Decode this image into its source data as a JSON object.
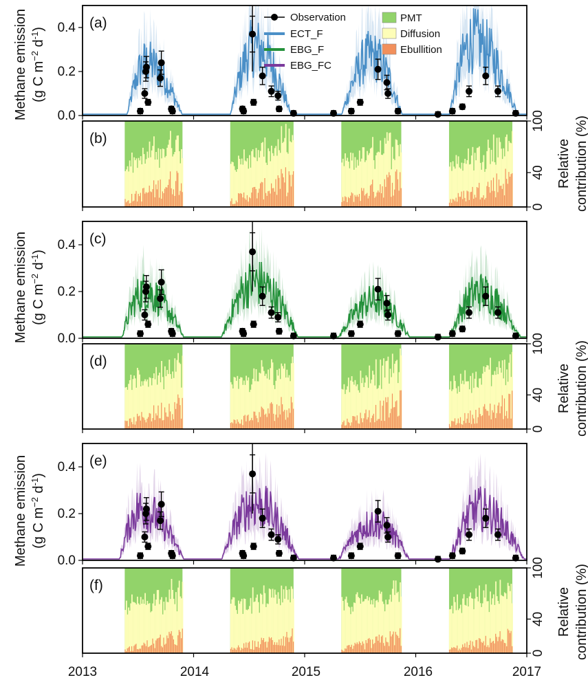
{
  "colors": {
    "ECT_F": "#4a8fc7",
    "EBG_F": "#24913b",
    "EBG_FC": "#7b3a9c",
    "PMT": "#92d36a",
    "Diffusion": "#fdfdb8",
    "Ebullition": "#f2905c",
    "observation": "#000000"
  },
  "legend": {
    "observation": "Observation",
    "ECT_F": "ECT_F",
    "EBG_F": "EBG_F",
    "EBG_FC": "EBG_FC",
    "PMT": "PMT",
    "Diffusion": "Diffusion",
    "Ebullition": "Ebullition"
  },
  "emission_ylabel": {
    "line1": "Methane emission",
    "line2_prefix": "(g C m",
    "line2_exp1": "−2",
    "line2_mid": " d",
    "line2_exp2": "-1",
    "line2_suffix": ")"
  },
  "contribution_ylabel": {
    "line1": "Relative",
    "line2": "contribution (%)"
  },
  "x_ticks": [
    "2013",
    "2014",
    "2015",
    "2016",
    "2017"
  ],
  "chart_data": [
    {
      "panel": "(a)",
      "type": "line",
      "x_range": [
        2013,
        2017
      ],
      "ylim": [
        0,
        0.5
      ],
      "y_ticks": [
        "0.0",
        "0.2",
        "0.4"
      ],
      "series": [
        {
          "name": "ECT_F",
          "seasons": [
            {
              "start": 2013.4,
              "peak": 2013.57,
              "end": 2013.9,
              "peak_value": 0.24
            },
            {
              "start": 2014.33,
              "peak": 2014.55,
              "end": 2014.88,
              "peak_value": 0.31
            },
            {
              "start": 2015.33,
              "peak": 2015.6,
              "end": 2015.88,
              "peak_value": 0.27
            },
            {
              "start": 2016.3,
              "peak": 2016.52,
              "end": 2016.92,
              "peak_value": 0.34
            }
          ]
        }
      ],
      "observations": [
        {
          "x": 2013.52,
          "y": 0.02
        },
        {
          "x": 2013.56,
          "y": 0.1
        },
        {
          "x": 2013.57,
          "y": 0.2
        },
        {
          "x": 2013.575,
          "y": 0.22
        },
        {
          "x": 2013.59,
          "y": 0.06
        },
        {
          "x": 2013.7,
          "y": 0.17
        },
        {
          "x": 2013.71,
          "y": 0.24
        },
        {
          "x": 2013.8,
          "y": 0.03
        },
        {
          "x": 2013.81,
          "y": 0.02
        },
        {
          "x": 2014.44,
          "y": 0.03
        },
        {
          "x": 2014.45,
          "y": 0.02
        },
        {
          "x": 2014.53,
          "y": 0.37
        },
        {
          "x": 2014.54,
          "y": 0.06
        },
        {
          "x": 2014.62,
          "y": 0.18
        },
        {
          "x": 2014.7,
          "y": 0.11
        },
        {
          "x": 2014.76,
          "y": 0.09
        },
        {
          "x": 2014.77,
          "y": 0.03
        },
        {
          "x": 2014.9,
          "y": 0.01
        },
        {
          "x": 2015.26,
          "y": 0.01
        },
        {
          "x": 2015.42,
          "y": 0.02
        },
        {
          "x": 2015.5,
          "y": 0.06
        },
        {
          "x": 2015.66,
          "y": 0.21
        },
        {
          "x": 2015.74,
          "y": 0.15
        },
        {
          "x": 2015.75,
          "y": 0.1
        },
        {
          "x": 2015.84,
          "y": 0.02
        },
        {
          "x": 2016.2,
          "y": 0.005
        },
        {
          "x": 2016.33,
          "y": 0.02
        },
        {
          "x": 2016.42,
          "y": 0.04
        },
        {
          "x": 2016.48,
          "y": 0.11
        },
        {
          "x": 2016.63,
          "y": 0.18
        },
        {
          "x": 2016.74,
          "y": 0.11
        },
        {
          "x": 2016.9,
          "y": 0.01
        }
      ]
    },
    {
      "panel": "(b)",
      "type": "area",
      "stacked": true,
      "x_range": [
        2013,
        2017
      ],
      "ylim": [
        0,
        100
      ],
      "y_ticks": [
        "0",
        "40",
        "100"
      ],
      "season_windows": [
        [
          2013.38,
          2013.9
        ],
        [
          2014.33,
          2014.9
        ],
        [
          2015.33,
          2015.87
        ],
        [
          2016.3,
          2016.87
        ]
      ],
      "series": [
        {
          "name": "Ebullition",
          "mean_percent": 20
        },
        {
          "name": "Diffusion",
          "mean_percent": 40
        },
        {
          "name": "PMT",
          "mean_percent": 40
        }
      ]
    },
    {
      "panel": "(c)",
      "type": "line",
      "x_range": [
        2013,
        2017
      ],
      "ylim": [
        0,
        0.5
      ],
      "y_ticks": [
        "0.0",
        "0.2",
        "0.4"
      ],
      "series": [
        {
          "name": "EBG_F",
          "seasons": [
            {
              "start": 2013.35,
              "peak": 2013.55,
              "end": 2013.92,
              "peak_value": 0.2
            },
            {
              "start": 2014.25,
              "peak": 2014.55,
              "end": 2014.95,
              "peak_value": 0.24
            },
            {
              "start": 2015.3,
              "peak": 2015.62,
              "end": 2015.95,
              "peak_value": 0.16
            },
            {
              "start": 2016.3,
              "peak": 2016.57,
              "end": 2016.95,
              "peak_value": 0.2
            }
          ]
        }
      ],
      "observations": [
        {
          "x": 2013.52,
          "y": 0.02
        },
        {
          "x": 2013.56,
          "y": 0.1
        },
        {
          "x": 2013.57,
          "y": 0.2
        },
        {
          "x": 2013.575,
          "y": 0.22
        },
        {
          "x": 2013.59,
          "y": 0.06
        },
        {
          "x": 2013.7,
          "y": 0.17
        },
        {
          "x": 2013.71,
          "y": 0.24
        },
        {
          "x": 2013.8,
          "y": 0.03
        },
        {
          "x": 2013.81,
          "y": 0.02
        },
        {
          "x": 2014.44,
          "y": 0.03
        },
        {
          "x": 2014.45,
          "y": 0.02
        },
        {
          "x": 2014.53,
          "y": 0.37
        },
        {
          "x": 2014.54,
          "y": 0.06
        },
        {
          "x": 2014.62,
          "y": 0.18
        },
        {
          "x": 2014.7,
          "y": 0.11
        },
        {
          "x": 2014.76,
          "y": 0.09
        },
        {
          "x": 2014.77,
          "y": 0.03
        },
        {
          "x": 2014.9,
          "y": 0.01
        },
        {
          "x": 2015.26,
          "y": 0.01
        },
        {
          "x": 2015.42,
          "y": 0.02
        },
        {
          "x": 2015.5,
          "y": 0.06
        },
        {
          "x": 2015.66,
          "y": 0.21
        },
        {
          "x": 2015.74,
          "y": 0.15
        },
        {
          "x": 2015.75,
          "y": 0.1
        },
        {
          "x": 2015.84,
          "y": 0.02
        },
        {
          "x": 2016.2,
          "y": 0.005
        },
        {
          "x": 2016.33,
          "y": 0.02
        },
        {
          "x": 2016.42,
          "y": 0.04
        },
        {
          "x": 2016.48,
          "y": 0.11
        },
        {
          "x": 2016.63,
          "y": 0.18
        },
        {
          "x": 2016.74,
          "y": 0.11
        },
        {
          "x": 2016.9,
          "y": 0.01
        }
      ]
    },
    {
      "panel": "(d)",
      "type": "area",
      "stacked": true,
      "x_range": [
        2013,
        2017
      ],
      "ylim": [
        0,
        100
      ],
      "y_ticks": [
        "0",
        "40",
        "100"
      ],
      "season_windows": [
        [
          2013.38,
          2013.9
        ],
        [
          2014.33,
          2014.9
        ],
        [
          2015.33,
          2015.87
        ],
        [
          2016.3,
          2016.87
        ]
      ],
      "series": [
        {
          "name": "Ebullition",
          "mean_percent": 18
        },
        {
          "name": "Diffusion",
          "mean_percent": 42
        },
        {
          "name": "PMT",
          "mean_percent": 40
        }
      ]
    },
    {
      "panel": "(e)",
      "type": "line",
      "x_range": [
        2013,
        2017
      ],
      "ylim": [
        0,
        0.5
      ],
      "y_ticks": [
        "0.0",
        "0.2",
        "0.4"
      ],
      "series": [
        {
          "name": "EBG_FC",
          "seasons": [
            {
              "start": 2013.33,
              "peak": 2013.52,
              "end": 2013.92,
              "peak_value": 0.22
            },
            {
              "start": 2014.25,
              "peak": 2014.55,
              "end": 2014.95,
              "peak_value": 0.24
            },
            {
              "start": 2015.3,
              "peak": 2015.62,
              "end": 2015.95,
              "peak_value": 0.16
            },
            {
              "start": 2016.3,
              "peak": 2016.57,
              "end": 2016.98,
              "peak_value": 0.22
            }
          ]
        }
      ],
      "observations": [
        {
          "x": 2013.52,
          "y": 0.02
        },
        {
          "x": 2013.56,
          "y": 0.1
        },
        {
          "x": 2013.57,
          "y": 0.2
        },
        {
          "x": 2013.575,
          "y": 0.22
        },
        {
          "x": 2013.59,
          "y": 0.06
        },
        {
          "x": 2013.7,
          "y": 0.17
        },
        {
          "x": 2013.71,
          "y": 0.24
        },
        {
          "x": 2013.8,
          "y": 0.03
        },
        {
          "x": 2013.81,
          "y": 0.02
        },
        {
          "x": 2014.44,
          "y": 0.03
        },
        {
          "x": 2014.45,
          "y": 0.02
        },
        {
          "x": 2014.53,
          "y": 0.37
        },
        {
          "x": 2014.54,
          "y": 0.06
        },
        {
          "x": 2014.62,
          "y": 0.18
        },
        {
          "x": 2014.7,
          "y": 0.11
        },
        {
          "x": 2014.76,
          "y": 0.09
        },
        {
          "x": 2014.77,
          "y": 0.03
        },
        {
          "x": 2014.9,
          "y": 0.01
        },
        {
          "x": 2015.26,
          "y": 0.01
        },
        {
          "x": 2015.42,
          "y": 0.02
        },
        {
          "x": 2015.5,
          "y": 0.06
        },
        {
          "x": 2015.66,
          "y": 0.21
        },
        {
          "x": 2015.74,
          "y": 0.15
        },
        {
          "x": 2015.75,
          "y": 0.1
        },
        {
          "x": 2015.84,
          "y": 0.02
        },
        {
          "x": 2016.2,
          "y": 0.005
        },
        {
          "x": 2016.33,
          "y": 0.02
        },
        {
          "x": 2016.42,
          "y": 0.04
        },
        {
          "x": 2016.48,
          "y": 0.11
        },
        {
          "x": 2016.63,
          "y": 0.18
        },
        {
          "x": 2016.74,
          "y": 0.11
        },
        {
          "x": 2016.9,
          "y": 0.01
        }
      ]
    },
    {
      "panel": "(f)",
      "type": "area",
      "stacked": true,
      "x_range": [
        2013,
        2017
      ],
      "ylim": [
        0,
        100
      ],
      "y_ticks": [
        "0",
        "40",
        "100"
      ],
      "season_windows": [
        [
          2013.38,
          2013.9
        ],
        [
          2014.33,
          2014.9
        ],
        [
          2015.33,
          2015.87
        ],
        [
          2016.3,
          2016.87
        ]
      ],
      "series": [
        {
          "name": "Ebullition",
          "mean_percent": 12
        },
        {
          "name": "Diffusion",
          "mean_percent": 48
        },
        {
          "name": "PMT",
          "mean_percent": 40
        }
      ]
    }
  ]
}
